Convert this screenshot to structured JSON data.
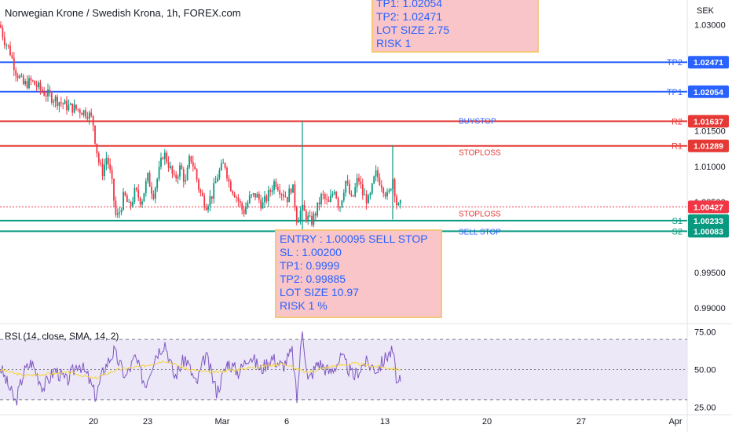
{
  "header": {
    "title": "Norwegian Krone / Swedish Krona, 1h, FOREX.com",
    "currency": "SEK"
  },
  "annotations": {
    "top": [
      "TP1: 1.02054",
      "TP2: 1.02471",
      "LOT SIZE 2.75",
      "RISK 1"
    ],
    "bottom": [
      "ENTRY : 1.00095 SELL STOP",
      "SL : 1.00200",
      "TP1: 0.9999",
      "TP2: 0.99885",
      "LOT SIZE 10.97",
      "RISK 1 %"
    ]
  },
  "colors": {
    "blue_line": "#2962ff",
    "red_line": "#e53935",
    "green_line": "#089981",
    "rsi_line": "#7e57c2",
    "rsi_ma": "#f5d442",
    "current_price": "#f23645"
  },
  "chart_data": [
    {
      "type": "candlestick",
      "title": "Norwegian Krone / Swedish Krona, 1h, FOREX.com",
      "y_unit": "SEK",
      "ylim": [
        0.988,
        1.0335
      ],
      "y_ticks": [
        1.03,
        1.015,
        1.01,
        1.005,
        0.995,
        0.99
      ],
      "y_tick_labels": [
        "1.03000",
        "1.01500",
        "1.01000",
        "1.00500",
        "0.99500",
        "0.99000"
      ],
      "x_tick_labels": [
        "20",
        "23",
        "Mar",
        "6",
        "13",
        "20",
        "27",
        "Apr"
      ],
      "price_path": [
        [
          0,
          1.03
        ],
        [
          5,
          1.028
        ],
        [
          12,
          1.0265
        ],
        [
          20,
          1.0235
        ],
        [
          30,
          1.0215
        ],
        [
          40,
          1.022
        ],
        [
          55,
          1.0205
        ],
        [
          70,
          1.0195
        ],
        [
          85,
          1.0185
        ],
        [
          100,
          1.018
        ],
        [
          112,
          1.0175
        ],
        [
          118,
          1.0165
        ],
        [
          122,
          1.013
        ],
        [
          126,
          1.0105
        ],
        [
          130,
          1.009
        ],
        [
          136,
          1.0115
        ],
        [
          142,
          1.008
        ],
        [
          148,
          1.0025
        ],
        [
          152,
          1.0035
        ],
        [
          158,
          1.006
        ],
        [
          165,
          1.004
        ],
        [
          172,
          1.0065
        ],
        [
          180,
          1.005
        ],
        [
          188,
          1.0085
        ],
        [
          195,
          1.006
        ],
        [
          202,
          1.009
        ],
        [
          208,
          1.012
        ],
        [
          214,
          1.0105
        ],
        [
          222,
          1.008
        ],
        [
          230,
          1.01
        ],
        [
          236,
          1.0075
        ],
        [
          242,
          1.0115
        ],
        [
          248,
          1.0095
        ],
        [
          254,
          1.0065
        ],
        [
          262,
          1.0045
        ],
        [
          270,
          1.006
        ],
        [
          278,
          1.009
        ],
        [
          286,
          1.0105
        ],
        [
          292,
          1.0075
        ],
        [
          300,
          1.006
        ],
        [
          310,
          1.0035
        ],
        [
          318,
          1.0055
        ],
        [
          326,
          1.006
        ],
        [
          334,
          1.0045
        ],
        [
          342,
          1.006
        ],
        [
          350,
          1.008
        ],
        [
          358,
          1.0065
        ],
        [
          366,
          1.0055
        ],
        [
          372,
          1.0075
        ],
        [
          378,
          1.0025
        ],
        [
          384,
          1.004
        ],
        [
          390,
          1.003
        ],
        [
          396,
          1.002
        ],
        [
          402,
          1.0035
        ],
        [
          410,
          1.006
        ],
        [
          418,
          1.0045
        ],
        [
          426,
          1.007
        ],
        [
          432,
          1.004
        ],
        [
          440,
          1.008
        ],
        [
          448,
          1.005
        ],
        [
          456,
          1.0085
        ],
        [
          462,
          1.006
        ],
        [
          470,
          1.005
        ],
        [
          478,
          1.009
        ],
        [
          486,
          1.0075
        ],
        [
          494,
          1.0055
        ],
        [
          500,
          1.0085
        ],
        [
          506,
          1.004
        ],
        [
          510,
          1.0045
        ]
      ],
      "spikes": [
        {
          "x": 385,
          "high": 1.01637,
          "low": 1.0
        },
        {
          "x": 500,
          "high": 1.013,
          "low": 1.0025
        }
      ],
      "levels": [
        {
          "name": "TP2",
          "value": 1.02471,
          "label": "1.02471",
          "color": "#2962ff",
          "style": "solid"
        },
        {
          "name": "TP1",
          "value": 1.02054,
          "label": "1.02054",
          "color": "#2962ff",
          "style": "solid"
        },
        {
          "name": "R2",
          "value": 1.01637,
          "label": "1.01637",
          "color": "#e53935",
          "style": "solid",
          "text": "BUYSTOP",
          "text_color": "#2962ff"
        },
        {
          "name": "R1",
          "value": 1.01289,
          "label": "1.01289",
          "color": "#e53935",
          "style": "solid",
          "text": "STOPLOSS",
          "text_color": "#e53935"
        },
        {
          "name": "",
          "value": 1.00427,
          "label": "1.00427",
          "color": "#f23645",
          "style": "dotted",
          "text": "STOPLOSS",
          "text_color": "#e53935"
        },
        {
          "name": "S1",
          "value": 1.00233,
          "label": "1.00233",
          "color": "#089981",
          "style": "solid"
        },
        {
          "name": "S2",
          "value": 1.00083,
          "label": "1.00083",
          "color": "#089981",
          "style": "solid",
          "text": "SELL STOP",
          "text_color": "#2962ff"
        }
      ]
    },
    {
      "type": "line",
      "title": "RSI (14, close, SMA, 14, 2)",
      "ylim": [
        20,
        80
      ],
      "y_ticks": [
        75,
        50,
        25
      ],
      "y_tick_labels": [
        "75.00",
        "50.00",
        "25.00"
      ],
      "bands": [
        70,
        50,
        30
      ],
      "series": [
        {
          "name": "RSI",
          "values": [
            [
              0,
              52
            ],
            [
              10,
              40
            ],
            [
              20,
              28
            ],
            [
              30,
              48
            ],
            [
              40,
              55
            ],
            [
              55,
              38
            ],
            [
              70,
              50
            ],
            [
              85,
              42
            ],
            [
              100,
              55
            ],
            [
              112,
              45
            ],
            [
              122,
              32
            ],
            [
              132,
              50
            ],
            [
              145,
              62
            ],
            [
              160,
              45
            ],
            [
              172,
              58
            ],
            [
              185,
              40
            ],
            [
              198,
              60
            ],
            [
              210,
              68
            ],
            [
              222,
              45
            ],
            [
              236,
              58
            ],
            [
              250,
              40
            ],
            [
              262,
              60
            ],
            [
              276,
              35
            ],
            [
              290,
              55
            ],
            [
              304,
              48
            ],
            [
              318,
              60
            ],
            [
              332,
              50
            ],
            [
              346,
              58
            ],
            [
              360,
              52
            ],
            [
              372,
              62
            ],
            [
              378,
              30
            ],
            [
              385,
              78
            ],
            [
              392,
              42
            ],
            [
              405,
              55
            ],
            [
              420,
              48
            ],
            [
              435,
              58
            ],
            [
              450,
              45
            ],
            [
              465,
              55
            ],
            [
              480,
              50
            ],
            [
              494,
              60
            ],
            [
              500,
              62
            ],
            [
              506,
              40
            ],
            [
              510,
              42
            ]
          ]
        },
        {
          "name": "RSI-based MA",
          "values": [
            [
              0,
              50
            ],
            [
              30,
              46
            ],
            [
              60,
              47
            ],
            [
              90,
              48
            ],
            [
              120,
              44
            ],
            [
              150,
              50
            ],
            [
              180,
              52
            ],
            [
              210,
              56
            ],
            [
              240,
              50
            ],
            [
              270,
              48
            ],
            [
              300,
              50
            ],
            [
              330,
              52
            ],
            [
              360,
              54
            ],
            [
              390,
              48
            ],
            [
              420,
              52
            ],
            [
              450,
              54
            ],
            [
              480,
              52
            ],
            [
              510,
              50
            ]
          ]
        }
      ]
    }
  ]
}
